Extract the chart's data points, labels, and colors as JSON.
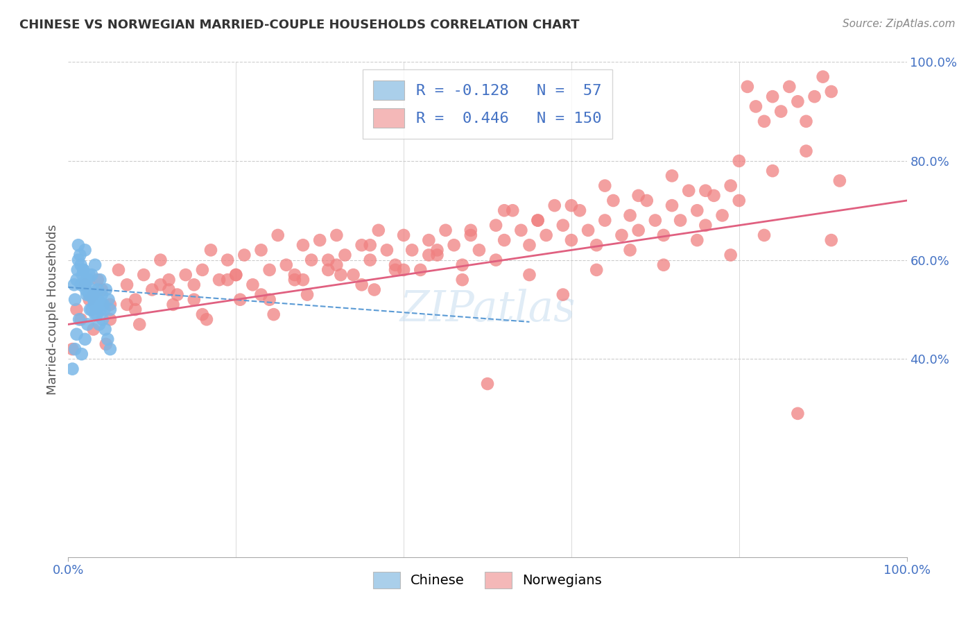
{
  "title": "CHINESE VS NORWEGIAN MARRIED-COUPLE HOUSEHOLDS CORRELATION CHART",
  "source": "Source: ZipAtlas.com",
  "ylabel": "Married-couple Households",
  "xlim": [
    0.0,
    1.0
  ],
  "ylim": [
    0.0,
    1.0
  ],
  "background_color": "#ffffff",
  "watermark": "ZIPatlas",
  "chinese_color": "#7ab8e8",
  "norwegian_color": "#f08080",
  "chinese_line_color": "#5b9bd5",
  "norwegian_line_color": "#e06080",
  "chinese_scatter_x": [
    0.008,
    0.012,
    0.015,
    0.018,
    0.02,
    0.022,
    0.025,
    0.028,
    0.03,
    0.032,
    0.035,
    0.038,
    0.04,
    0.042,
    0.045,
    0.048,
    0.05,
    0.012,
    0.018,
    0.02,
    0.025,
    0.03,
    0.035,
    0.04,
    0.01,
    0.015,
    0.022,
    0.028,
    0.033,
    0.038,
    0.043,
    0.005,
    0.008,
    0.01,
    0.013,
    0.016,
    0.02,
    0.023,
    0.026,
    0.029,
    0.032,
    0.035,
    0.038,
    0.041,
    0.044,
    0.047,
    0.05,
    0.007,
    0.011,
    0.014,
    0.017,
    0.021,
    0.024,
    0.027,
    0.031,
    0.034,
    0.037
  ],
  "chinese_scatter_y": [
    0.52,
    0.6,
    0.55,
    0.58,
    0.62,
    0.56,
    0.53,
    0.57,
    0.54,
    0.59,
    0.52,
    0.56,
    0.53,
    0.51,
    0.54,
    0.52,
    0.5,
    0.63,
    0.58,
    0.55,
    0.57,
    0.52,
    0.54,
    0.51,
    0.56,
    0.59,
    0.53,
    0.5,
    0.52,
    0.51,
    0.5,
    0.38,
    0.42,
    0.45,
    0.48,
    0.41,
    0.44,
    0.47,
    0.5,
    0.53,
    0.49,
    0.52,
    0.5,
    0.48,
    0.46,
    0.44,
    0.42,
    0.55,
    0.58,
    0.61,
    0.57,
    0.54,
    0.56,
    0.53,
    0.51,
    0.49,
    0.47
  ],
  "norwegian_scatter_x": [
    0.005,
    0.01,
    0.015,
    0.02,
    0.025,
    0.03,
    0.035,
    0.04,
    0.05,
    0.06,
    0.07,
    0.08,
    0.09,
    0.1,
    0.11,
    0.12,
    0.13,
    0.14,
    0.15,
    0.16,
    0.17,
    0.18,
    0.19,
    0.2,
    0.21,
    0.22,
    0.23,
    0.24,
    0.25,
    0.26,
    0.27,
    0.28,
    0.29,
    0.3,
    0.31,
    0.32,
    0.33,
    0.34,
    0.35,
    0.36,
    0.37,
    0.38,
    0.39,
    0.4,
    0.41,
    0.42,
    0.43,
    0.44,
    0.45,
    0.46,
    0.47,
    0.48,
    0.49,
    0.5,
    0.51,
    0.52,
    0.53,
    0.54,
    0.55,
    0.56,
    0.57,
    0.58,
    0.59,
    0.6,
    0.61,
    0.62,
    0.63,
    0.64,
    0.65,
    0.66,
    0.67,
    0.68,
    0.69,
    0.7,
    0.71,
    0.72,
    0.73,
    0.74,
    0.75,
    0.76,
    0.77,
    0.78,
    0.79,
    0.8,
    0.81,
    0.82,
    0.83,
    0.84,
    0.85,
    0.86,
    0.87,
    0.88,
    0.89,
    0.9,
    0.91,
    0.05,
    0.08,
    0.12,
    0.16,
    0.2,
    0.24,
    0.28,
    0.32,
    0.36,
    0.4,
    0.44,
    0.48,
    0.52,
    0.56,
    0.6,
    0.64,
    0.68,
    0.72,
    0.76,
    0.8,
    0.84,
    0.88,
    0.92,
    0.03,
    0.07,
    0.11,
    0.15,
    0.19,
    0.23,
    0.27,
    0.31,
    0.35,
    0.39,
    0.43,
    0.47,
    0.51,
    0.55,
    0.59,
    0.63,
    0.67,
    0.71,
    0.75,
    0.79,
    0.83,
    0.87,
    0.91,
    0.045,
    0.085,
    0.125,
    0.165,
    0.205,
    0.245,
    0.285,
    0.325,
    0.365
  ],
  "norwegian_scatter_y": [
    0.42,
    0.5,
    0.48,
    0.55,
    0.52,
    0.53,
    0.56,
    0.54,
    0.51,
    0.58,
    0.55,
    0.52,
    0.57,
    0.54,
    0.6,
    0.56,
    0.53,
    0.57,
    0.55,
    0.58,
    0.62,
    0.56,
    0.6,
    0.57,
    0.61,
    0.55,
    0.62,
    0.58,
    0.65,
    0.59,
    0.56,
    0.63,
    0.6,
    0.64,
    0.58,
    0.65,
    0.61,
    0.57,
    0.63,
    0.6,
    0.66,
    0.62,
    0.59,
    0.65,
    0.62,
    0.58,
    0.64,
    0.61,
    0.66,
    0.63,
    0.59,
    0.65,
    0.62,
    0.35,
    0.67,
    0.64,
    0.7,
    0.66,
    0.63,
    0.68,
    0.65,
    0.71,
    0.67,
    0.64,
    0.7,
    0.66,
    0.63,
    0.68,
    0.72,
    0.65,
    0.69,
    0.66,
    0.72,
    0.68,
    0.65,
    0.71,
    0.68,
    0.74,
    0.7,
    0.67,
    0.73,
    0.69,
    0.75,
    0.72,
    0.95,
    0.91,
    0.88,
    0.93,
    0.9,
    0.95,
    0.92,
    0.88,
    0.93,
    0.97,
    0.94,
    0.48,
    0.5,
    0.54,
    0.49,
    0.57,
    0.52,
    0.56,
    0.59,
    0.63,
    0.58,
    0.62,
    0.66,
    0.7,
    0.68,
    0.71,
    0.75,
    0.73,
    0.77,
    0.74,
    0.8,
    0.78,
    0.82,
    0.76,
    0.46,
    0.51,
    0.55,
    0.52,
    0.56,
    0.53,
    0.57,
    0.6,
    0.55,
    0.58,
    0.61,
    0.56,
    0.6,
    0.57,
    0.53,
    0.58,
    0.62,
    0.59,
    0.64,
    0.61,
    0.65,
    0.29,
    0.64,
    0.43,
    0.47,
    0.51,
    0.48,
    0.52,
    0.49,
    0.53,
    0.57,
    0.54
  ],
  "chinese_trend_x": [
    0.0,
    0.55
  ],
  "chinese_trend_y": [
    0.545,
    0.475
  ],
  "norwegian_trend_x": [
    0.0,
    1.0
  ],
  "norwegian_trend_y": [
    0.47,
    0.72
  ]
}
